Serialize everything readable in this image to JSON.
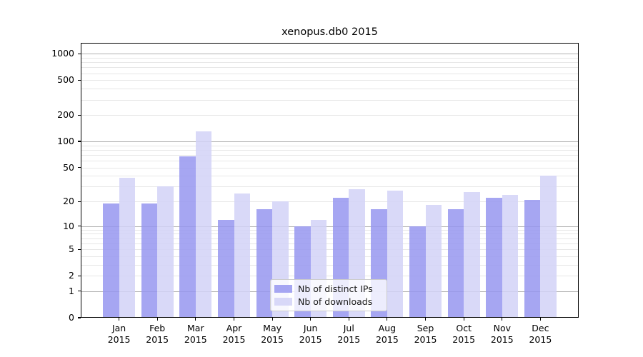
{
  "chart_data": {
    "type": "bar",
    "title": "xenopus.db0 2015",
    "categories": [
      "Jan",
      "Feb",
      "Mar",
      "Apr",
      "May",
      "Jun",
      "Jul",
      "Aug",
      "Sep",
      "Oct",
      "Nov",
      "Dec"
    ],
    "x_year_label": "2015",
    "series": [
      {
        "name": "Nb of distinct IPs",
        "color": "#9696F0",
        "values": [
          19,
          19,
          67,
          12,
          16,
          10,
          22,
          16,
          10,
          16,
          22,
          21
        ]
      },
      {
        "name": "Nb of downloads",
        "color": "#D2D2F7",
        "values": [
          38,
          30,
          130,
          25,
          20,
          12,
          28,
          27,
          18,
          26,
          24,
          40
        ]
      }
    ],
    "bar_opacity": 0.85,
    "yscale": "log1p",
    "y_ticks": [
      1000,
      500,
      200,
      100,
      50,
      20,
      10,
      5,
      2,
      1,
      0
    ],
    "y_major_gridlines": [
      1000,
      100,
      10,
      1
    ],
    "ylim": [
      0,
      1330
    ],
    "xlabel": "",
    "ylabel": "",
    "grid": true,
    "legend_position": "lower-center-inside",
    "colors": {
      "grid_major": "#b0b0b0",
      "grid_minor": "#e7e7e7",
      "spine": "#000000",
      "background": "#ffffff"
    }
  }
}
